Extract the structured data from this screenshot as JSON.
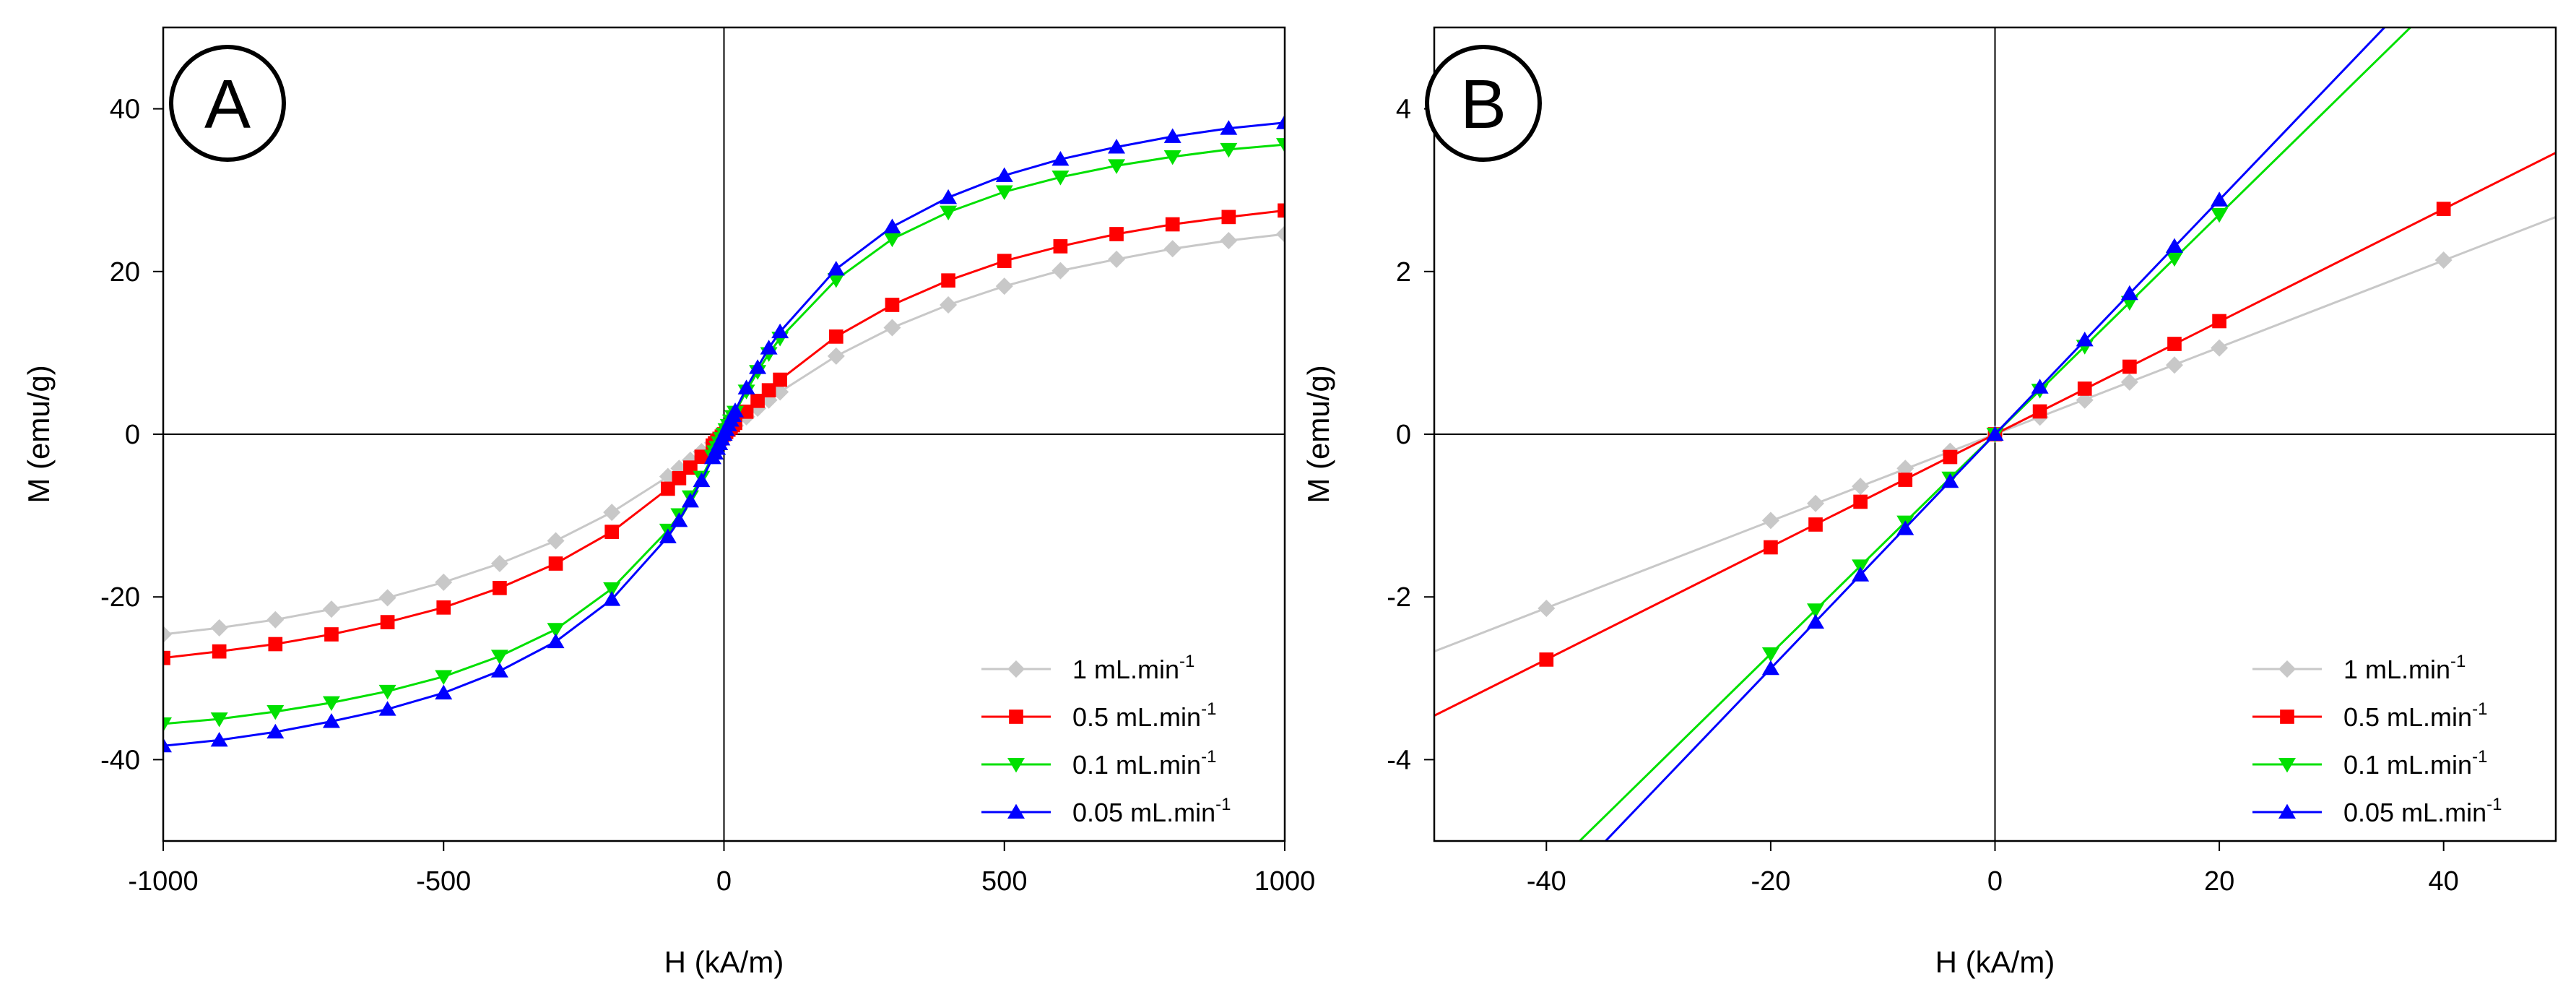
{
  "figure": {
    "panels": [
      "A",
      "B"
    ]
  },
  "legend": {
    "entries": [
      {
        "label": "1 mL.min",
        "sup": "-1",
        "color": "#c8c8c8",
        "marker": "diamond"
      },
      {
        "label": "0.5 mL.min",
        "sup": "-1",
        "color": "#ff0000",
        "marker": "square"
      },
      {
        "label": "0.1 mL.min",
        "sup": "-1",
        "color": "#00e000",
        "marker": "triangle-down"
      },
      {
        "label": "0.05 mL.min",
        "sup": "-1",
        "color": "#0000ff",
        "marker": "triangle-up"
      }
    ]
  },
  "chart_data": [
    {
      "type": "line",
      "panel": "A",
      "xlabel": "H (kA/m)",
      "ylabel": "M (emu/g)",
      "xlim": [
        -1000,
        1000
      ],
      "ylim": [
        -50,
        50
      ],
      "xticks": [
        -1000,
        -500,
        0,
        500,
        1000
      ],
      "yticks": [
        -40,
        -20,
        0,
        20,
        40
      ],
      "xtick_labels": [
        "-1000",
        "-500",
        "0",
        "500",
        "1000"
      ],
      "ytick_labels": [
        "-40",
        "-20",
        "0",
        "20",
        "40"
      ],
      "legend_position": "bottom-right",
      "series": [
        {
          "name": "1 mL.min-1",
          "x": [
            -1000,
            -900,
            -800,
            -700,
            -600,
            -500,
            -400,
            -300,
            -200,
            -100,
            -80,
            -60,
            -40,
            -20,
            -16,
            -12,
            -8,
            -4,
            0,
            4,
            8,
            12,
            16,
            20,
            40,
            60,
            80,
            100,
            200,
            300,
            400,
            500,
            600,
            700,
            800,
            900,
            1000
          ],
          "y": [
            -24.6,
            -23.8,
            -22.8,
            -21.5,
            -20.1,
            -18.2,
            -15.9,
            -13.1,
            -9.6,
            -5.2,
            -4.2,
            -3.2,
            -2.14,
            -1.06,
            -0.85,
            -0.64,
            -0.42,
            -0.21,
            0,
            0.21,
            0.42,
            0.64,
            0.85,
            1.06,
            2.14,
            3.2,
            4.2,
            5.2,
            9.6,
            13.1,
            15.9,
            18.2,
            20.1,
            21.5,
            22.8,
            23.8,
            24.6
          ]
        },
        {
          "name": "0.5 mL.min-1",
          "x": [
            -1000,
            -900,
            -800,
            -700,
            -600,
            -500,
            -400,
            -300,
            -200,
            -100,
            -80,
            -60,
            -40,
            -20,
            -16,
            -12,
            -8,
            -4,
            0,
            4,
            8,
            12,
            16,
            20,
            40,
            60,
            80,
            100,
            200,
            300,
            400,
            500,
            600,
            700,
            800,
            900,
            1000
          ],
          "y": [
            -27.5,
            -26.7,
            -25.8,
            -24.6,
            -23.1,
            -21.3,
            -18.9,
            -15.9,
            -12.0,
            -6.7,
            -5.4,
            -4.1,
            -2.77,
            -1.39,
            -1.11,
            -0.83,
            -0.56,
            -0.28,
            0,
            0.28,
            0.56,
            0.83,
            1.11,
            1.39,
            2.77,
            4.1,
            5.4,
            6.7,
            12.0,
            15.9,
            18.9,
            21.3,
            23.1,
            24.6,
            25.8,
            26.7,
            27.5
          ]
        },
        {
          "name": "0.1 mL.min-1",
          "x": [
            -1000,
            -900,
            -800,
            -700,
            -600,
            -500,
            -400,
            -300,
            -200,
            -100,
            -80,
            -60,
            -40,
            -20,
            -16,
            -12,
            -8,
            -4,
            0,
            4,
            8,
            12,
            16,
            20,
            40,
            60,
            80,
            100,
            200,
            300,
            400,
            500,
            600,
            700,
            800,
            900,
            1000
          ],
          "y": [
            -35.6,
            -35.0,
            -34.1,
            -33.0,
            -31.6,
            -29.8,
            -27.3,
            -24.0,
            -19.0,
            -11.8,
            -9.9,
            -7.7,
            -5.3,
            -2.7,
            -2.16,
            -1.62,
            -1.08,
            -0.54,
            0,
            0.54,
            1.08,
            1.62,
            2.16,
            2.7,
            5.3,
            7.7,
            9.9,
            11.8,
            19.0,
            24.0,
            27.3,
            29.8,
            31.6,
            33.0,
            34.1,
            35.0,
            35.6
          ]
        },
        {
          "name": "0.05 mL.min-1",
          "x": [
            -1000,
            -900,
            -800,
            -700,
            -600,
            -500,
            -400,
            -300,
            -200,
            -100,
            -80,
            -60,
            -40,
            -20,
            -16,
            -12,
            -8,
            -4,
            0,
            4,
            8,
            12,
            16,
            20,
            40,
            60,
            80,
            100,
            200,
            300,
            400,
            500,
            600,
            700,
            800,
            900,
            1000
          ],
          "y": [
            -38.3,
            -37.6,
            -36.6,
            -35.3,
            -33.8,
            -31.8,
            -29.1,
            -25.5,
            -20.3,
            -12.6,
            -10.6,
            -8.2,
            -5.7,
            -2.88,
            -2.31,
            -1.73,
            -1.16,
            -0.58,
            0,
            0.58,
            1.16,
            1.73,
            2.31,
            2.88,
            5.7,
            8.2,
            10.6,
            12.6,
            20.3,
            25.5,
            29.1,
            31.8,
            33.8,
            35.3,
            36.6,
            37.6,
            38.3
          ]
        }
      ]
    },
    {
      "type": "line",
      "panel": "B",
      "xlabel": "H (kA/m)",
      "ylabel": "M (emu/g)",
      "xlim": [
        -50,
        50
      ],
      "ylim": [
        -5,
        5
      ],
      "xticks": [
        -40,
        -20,
        0,
        20,
        40
      ],
      "yticks": [
        -4,
        -2,
        0,
        2,
        4
      ],
      "xtick_labels": [
        "-40",
        "-20",
        "0",
        "20",
        "40"
      ],
      "ytick_labels": [
        "-4",
        "-2",
        "0",
        "2",
        "4"
      ],
      "legend_position": "bottom-right",
      "series": [
        {
          "name": "1 mL.min-1",
          "slope": 0.0534,
          "x": [
            -40,
            -20,
            -16,
            -12,
            -8,
            -4,
            0,
            4,
            8,
            12,
            16,
            20,
            40
          ],
          "y": [
            -2.14,
            -1.06,
            -0.85,
            -0.64,
            -0.42,
            -0.21,
            0,
            0.21,
            0.42,
            0.64,
            0.85,
            1.06,
            2.14
          ]
        },
        {
          "name": "0.5 mL.min-1",
          "slope": 0.0692,
          "x": [
            -40,
            -20,
            -16,
            -12,
            -8,
            -4,
            0,
            4,
            8,
            12,
            16,
            20,
            40
          ],
          "y": [
            -2.77,
            -1.39,
            -1.11,
            -0.83,
            -0.56,
            -0.28,
            0,
            0.28,
            0.56,
            0.83,
            1.11,
            1.39,
            2.77
          ]
        },
        {
          "name": "0.1 mL.min-1",
          "slope": 0.135,
          "x": [
            -20,
            -16,
            -12,
            -8,
            -4,
            0,
            4,
            8,
            12,
            16,
            20
          ],
          "y": [
            -2.7,
            -2.16,
            -1.62,
            -1.08,
            -0.54,
            0,
            0.54,
            1.08,
            1.62,
            2.16,
            2.7
          ]
        },
        {
          "name": "0.05 mL.min-1",
          "slope": 0.144,
          "x": [
            -20,
            -16,
            -12,
            -8,
            -4,
            0,
            4,
            8,
            12,
            16,
            20
          ],
          "y": [
            -2.88,
            -2.31,
            -1.73,
            -1.16,
            -0.58,
            0,
            0.58,
            1.16,
            1.73,
            2.31,
            2.88
          ]
        }
      ]
    }
  ]
}
